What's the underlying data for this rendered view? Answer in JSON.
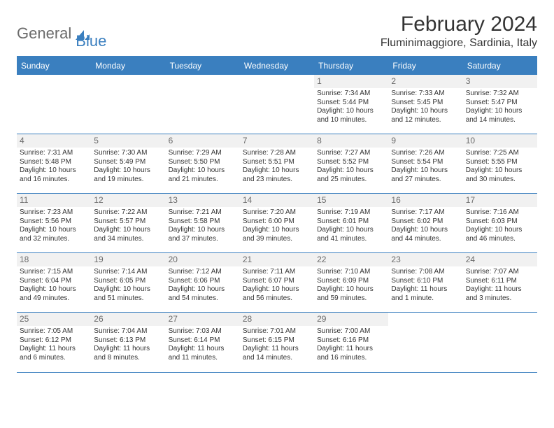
{
  "brand": {
    "text1": "General",
    "text2": "Blue"
  },
  "title": "February 2024",
  "location": "Fluminimaggiore, Sardinia, Italy",
  "colors": {
    "header_bg": "#3a7fbf",
    "header_text": "#ffffff",
    "daynum_bg": "#f1f1f1",
    "daynum_text": "#6b6b6b",
    "border": "#3a7fbf",
    "body_text": "#333333"
  },
  "weekdays": [
    "Sunday",
    "Monday",
    "Tuesday",
    "Wednesday",
    "Thursday",
    "Friday",
    "Saturday"
  ],
  "weeks": [
    [
      null,
      null,
      null,
      null,
      {
        "n": "1",
        "sunrise": "7:34 AM",
        "sunset": "5:44 PM",
        "daylight": "10 hours and 10 minutes."
      },
      {
        "n": "2",
        "sunrise": "7:33 AM",
        "sunset": "5:45 PM",
        "daylight": "10 hours and 12 minutes."
      },
      {
        "n": "3",
        "sunrise": "7:32 AM",
        "sunset": "5:47 PM",
        "daylight": "10 hours and 14 minutes."
      }
    ],
    [
      {
        "n": "4",
        "sunrise": "7:31 AM",
        "sunset": "5:48 PM",
        "daylight": "10 hours and 16 minutes."
      },
      {
        "n": "5",
        "sunrise": "7:30 AM",
        "sunset": "5:49 PM",
        "daylight": "10 hours and 19 minutes."
      },
      {
        "n": "6",
        "sunrise": "7:29 AM",
        "sunset": "5:50 PM",
        "daylight": "10 hours and 21 minutes."
      },
      {
        "n": "7",
        "sunrise": "7:28 AM",
        "sunset": "5:51 PM",
        "daylight": "10 hours and 23 minutes."
      },
      {
        "n": "8",
        "sunrise": "7:27 AM",
        "sunset": "5:52 PM",
        "daylight": "10 hours and 25 minutes."
      },
      {
        "n": "9",
        "sunrise": "7:26 AM",
        "sunset": "5:54 PM",
        "daylight": "10 hours and 27 minutes."
      },
      {
        "n": "10",
        "sunrise": "7:25 AM",
        "sunset": "5:55 PM",
        "daylight": "10 hours and 30 minutes."
      }
    ],
    [
      {
        "n": "11",
        "sunrise": "7:23 AM",
        "sunset": "5:56 PM",
        "daylight": "10 hours and 32 minutes."
      },
      {
        "n": "12",
        "sunrise": "7:22 AM",
        "sunset": "5:57 PM",
        "daylight": "10 hours and 34 minutes."
      },
      {
        "n": "13",
        "sunrise": "7:21 AM",
        "sunset": "5:58 PM",
        "daylight": "10 hours and 37 minutes."
      },
      {
        "n": "14",
        "sunrise": "7:20 AM",
        "sunset": "6:00 PM",
        "daylight": "10 hours and 39 minutes."
      },
      {
        "n": "15",
        "sunrise": "7:19 AM",
        "sunset": "6:01 PM",
        "daylight": "10 hours and 41 minutes."
      },
      {
        "n": "16",
        "sunrise": "7:17 AM",
        "sunset": "6:02 PM",
        "daylight": "10 hours and 44 minutes."
      },
      {
        "n": "17",
        "sunrise": "7:16 AM",
        "sunset": "6:03 PM",
        "daylight": "10 hours and 46 minutes."
      }
    ],
    [
      {
        "n": "18",
        "sunrise": "7:15 AM",
        "sunset": "6:04 PM",
        "daylight": "10 hours and 49 minutes."
      },
      {
        "n": "19",
        "sunrise": "7:14 AM",
        "sunset": "6:05 PM",
        "daylight": "10 hours and 51 minutes."
      },
      {
        "n": "20",
        "sunrise": "7:12 AM",
        "sunset": "6:06 PM",
        "daylight": "10 hours and 54 minutes."
      },
      {
        "n": "21",
        "sunrise": "7:11 AM",
        "sunset": "6:07 PM",
        "daylight": "10 hours and 56 minutes."
      },
      {
        "n": "22",
        "sunrise": "7:10 AM",
        "sunset": "6:09 PM",
        "daylight": "10 hours and 59 minutes."
      },
      {
        "n": "23",
        "sunrise": "7:08 AM",
        "sunset": "6:10 PM",
        "daylight": "11 hours and 1 minute."
      },
      {
        "n": "24",
        "sunrise": "7:07 AM",
        "sunset": "6:11 PM",
        "daylight": "11 hours and 3 minutes."
      }
    ],
    [
      {
        "n": "25",
        "sunrise": "7:05 AM",
        "sunset": "6:12 PM",
        "daylight": "11 hours and 6 minutes."
      },
      {
        "n": "26",
        "sunrise": "7:04 AM",
        "sunset": "6:13 PM",
        "daylight": "11 hours and 8 minutes."
      },
      {
        "n": "27",
        "sunrise": "7:03 AM",
        "sunset": "6:14 PM",
        "daylight": "11 hours and 11 minutes."
      },
      {
        "n": "28",
        "sunrise": "7:01 AM",
        "sunset": "6:15 PM",
        "daylight": "11 hours and 14 minutes."
      },
      {
        "n": "29",
        "sunrise": "7:00 AM",
        "sunset": "6:16 PM",
        "daylight": "11 hours and 16 minutes."
      },
      null,
      null
    ]
  ]
}
